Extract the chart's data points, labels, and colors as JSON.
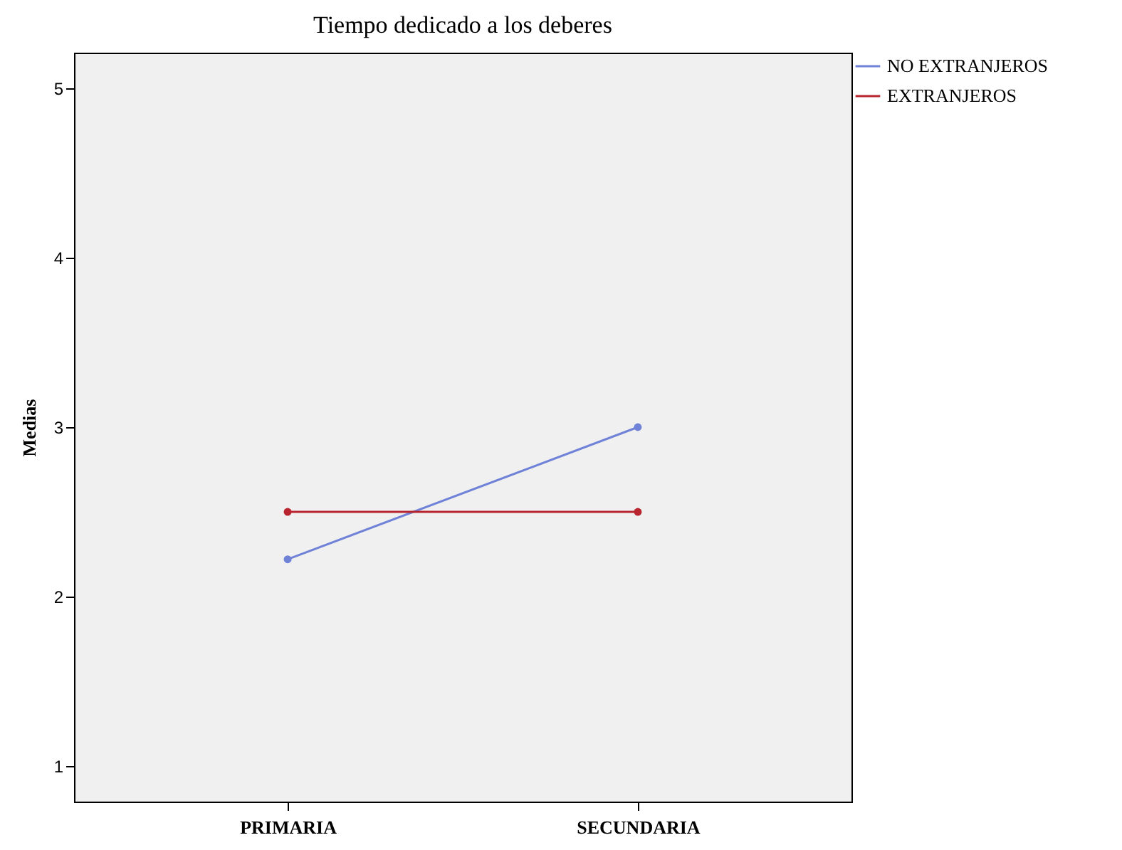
{
  "chart_data": {
    "type": "line",
    "title": "Tiempo dedicado a los deberes",
    "ylabel": "Medias",
    "categories": [
      "PRIMARIA",
      "SECUNDARIA"
    ],
    "series": [
      {
        "name": "NO EXTRANJEROS",
        "color": "#6f82d8",
        "values": [
          2.22,
          3.0
        ]
      },
      {
        "name": "EXTRANJEROS",
        "color": "#b8252e",
        "values": [
          2.5,
          2.5
        ]
      }
    ],
    "ylim": [
      0.79,
      5.21
    ],
    "yticks": [
      1,
      2,
      3,
      4,
      5
    ],
    "grid": false,
    "legend": "top right",
    "marker": "circle"
  }
}
